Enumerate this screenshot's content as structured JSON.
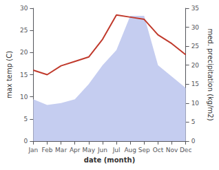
{
  "chart_data": {
    "type": "line",
    "categories": [
      "Jan",
      "Feb",
      "Mar",
      "Apr",
      "May",
      "Jun",
      "Jul",
      "Aug",
      "Sep",
      "Oct",
      "Nov",
      "Dec"
    ],
    "series": [
      {
        "type": "area",
        "color": "#c5cdf0",
        "axis": "y2",
        "values": [
          11.0,
          9.5,
          10.0,
          11.0,
          15.0,
          20.0,
          24.0,
          33.0,
          33.0,
          20.0,
          17.0,
          14.0
        ]
      },
      {
        "type": "line",
        "color": "#c0392b",
        "values": [
          16.0,
          15.0,
          17.0,
          18.0,
          19.0,
          23.0,
          28.5,
          28.0,
          27.5,
          24.0,
          22.0,
          19.5
        ]
      }
    ],
    "xlabel": "date (month)",
    "ylabel": "max temp (C)",
    "y2label": "med. precipitation (kg/m2)",
    "ylim": [
      0,
      30
    ],
    "yticks": [
      0,
      5,
      10,
      15,
      20,
      25,
      30
    ],
    "y2lim": [
      0,
      35
    ],
    "y2ticks": [
      0,
      5,
      10,
      15,
      20,
      25,
      30,
      35
    ],
    "grid": false
  }
}
